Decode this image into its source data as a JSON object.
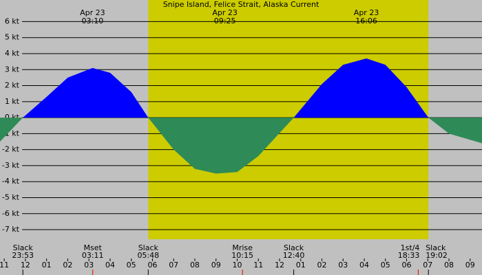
{
  "chart_data": {
    "type": "area",
    "title": "Snipe Island, Felice Strait, Alaska Current",
    "x": [
      -1.2,
      -0.12,
      1,
      2,
      3.17,
      4,
      5,
      5.8,
      7,
      8,
      9,
      10,
      11,
      12.67,
      14,
      15,
      16.1,
      17,
      18,
      19.03,
      20,
      21.56
    ],
    "values": [
      -1.5,
      0,
      1.3,
      2.5,
      3.1,
      2.8,
      1.6,
      0,
      -2.0,
      -3.2,
      -3.5,
      -3.4,
      -2.4,
      0,
      2.1,
      3.3,
      3.7,
      3.3,
      1.9,
      0,
      -1.0,
      -1.6
    ],
    "flood_color": "#0000ff",
    "ebb_color": "#2e8b57",
    "daylight": [
      5.8,
      19.03
    ],
    "day_color": "#cccc00",
    "night_color": "#c0c0c0",
    "xlim": [
      -1.2,
      21.56
    ],
    "ylim": [
      -7.6,
      7.35
    ],
    "yticks": [
      {
        "value": 6,
        "label": "6 kt"
      },
      {
        "value": 5,
        "label": "5 kt"
      },
      {
        "value": 4,
        "label": "4 kt"
      },
      {
        "value": 3,
        "label": "3 kt"
      },
      {
        "value": 2,
        "label": "2 kt"
      },
      {
        "value": 1,
        "label": "1 kt"
      },
      {
        "value": 0,
        "label": "0 kt"
      },
      {
        "value": -1,
        "label": "-1 kt"
      },
      {
        "value": -2,
        "label": "-2 kt"
      },
      {
        "value": -3,
        "label": "-3 kt"
      },
      {
        "value": -4,
        "label": "-4 kt"
      },
      {
        "value": -5,
        "label": "-5 kt"
      },
      {
        "value": -6,
        "label": "-6 kt"
      },
      {
        "value": -7,
        "label": "-7 kt"
      }
    ],
    "xticks": [
      {
        "value": -1,
        "label": "11"
      },
      {
        "value": 0,
        "label": "12"
      },
      {
        "value": 1,
        "label": "01"
      },
      {
        "value": 2,
        "label": "02"
      },
      {
        "value": 3,
        "label": "03"
      },
      {
        "value": 4,
        "label": "04"
      },
      {
        "value": 5,
        "label": "05"
      },
      {
        "value": 6,
        "label": "06"
      },
      {
        "value": 7,
        "label": "07"
      },
      {
        "value": 8,
        "label": "08"
      },
      {
        "value": 9,
        "label": "09"
      },
      {
        "value": 10,
        "label": "10"
      },
      {
        "value": 11,
        "label": "11"
      },
      {
        "value": 12,
        "label": "12"
      },
      {
        "value": 13,
        "label": "01"
      },
      {
        "value": 14,
        "label": "02"
      },
      {
        "value": 15,
        "label": "03"
      },
      {
        "value": 16,
        "label": "04"
      },
      {
        "value": 17,
        "label": "05"
      },
      {
        "value": 18,
        "label": "06"
      },
      {
        "value": 19,
        "label": "07"
      },
      {
        "value": 20,
        "label": "08"
      },
      {
        "value": 21,
        "label": "09"
      }
    ],
    "peaks": [
      {
        "date": "Apr 23",
        "time": "03:10",
        "x": 3.17
      },
      {
        "date": "Apr 23",
        "time": "09:25",
        "x": 9.42
      },
      {
        "date": "Apr 23",
        "time": "16:06",
        "x": 16.1
      }
    ],
    "events": [
      {
        "label": "Slack",
        "time": "23:53",
        "x": -0.12
      },
      {
        "label": "Mset",
        "time": "03:11",
        "x": 3.18
      },
      {
        "label": "Slack",
        "time": "05:48",
        "x": 5.8
      },
      {
        "label": "Mrise",
        "time": "10:15",
        "x": 10.25
      },
      {
        "label": "Slack",
        "time": "12:40",
        "x": 12.67
      },
      {
        "label": "1st/4",
        "time": "18:33",
        "x": 18.55
      },
      {
        "label": "Slack",
        "time": "19:02",
        "x": 19.03
      }
    ]
  }
}
